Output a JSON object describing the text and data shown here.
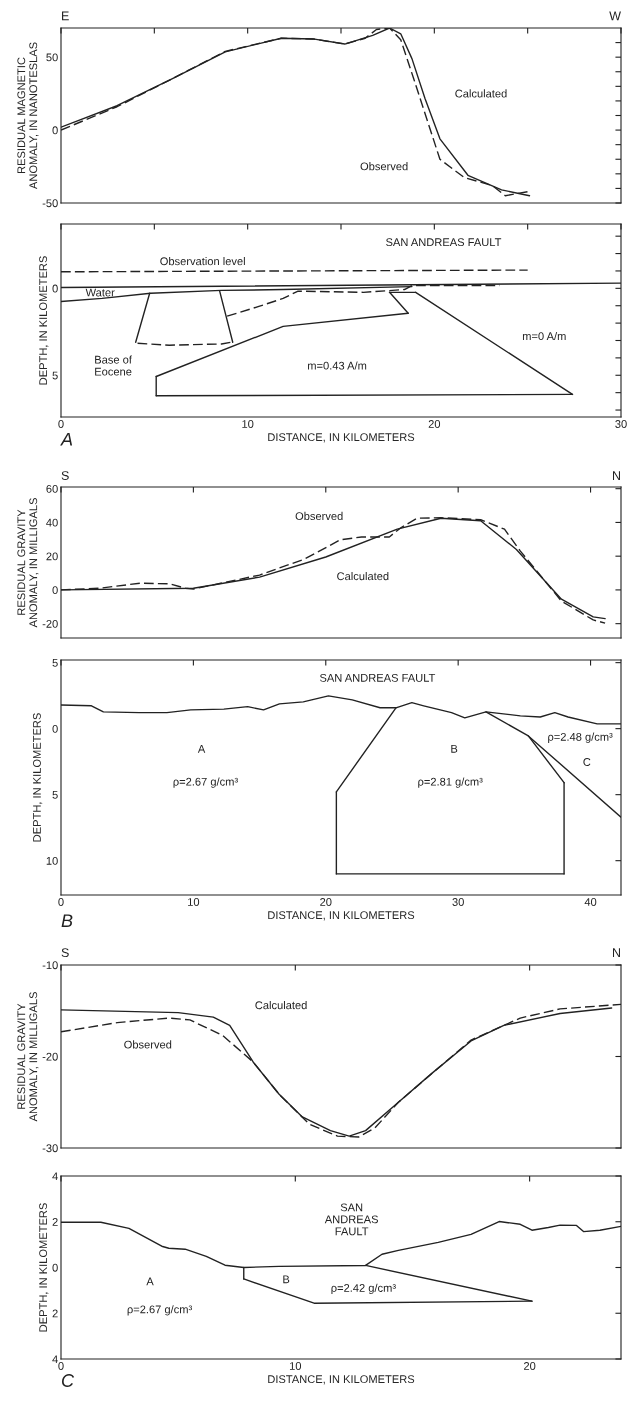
{
  "chart_data": [
    {
      "type": "line",
      "ylabel": "RESIDUAL MAGNETIC\nANOMALY, IN NANOTESLAS",
      "xlim": [
        0,
        30
      ],
      "ylim": [
        -50,
        70
      ],
      "tick_labels": "y",
      "xticks": [
        {
          "value": 0,
          "label": null
        },
        {
          "value": 5,
          "label": null
        },
        {
          "value": 10,
          "label": null
        },
        {
          "value": 15,
          "label": null
        },
        {
          "value": 20,
          "label": null
        },
        {
          "value": 25,
          "label": null
        },
        {
          "value": 30,
          "label": null
        }
      ],
      "yticks": [
        -50,
        {
          "value": -40,
          "label": null
        },
        {
          "value": -30,
          "label": null
        },
        {
          "value": -20,
          "label": null
        },
        {
          "value": -10,
          "label": null
        },
        0,
        {
          "value": 10,
          "label": null
        },
        {
          "value": 20,
          "label": null
        },
        {
          "value": 30,
          "label": null
        },
        {
          "value": 40,
          "label": null
        },
        50,
        {
          "value": 60,
          "label": null
        }
      ],
      "series": [
        {
          "color": "#222222",
          "line_style": "solid",
          "x": [
            0,
            3,
            6,
            8.8,
            11.8,
            13.5,
            15.2,
            16.7,
            17.6,
            18.2,
            18.8,
            19.5,
            20.3,
            21.8,
            23.6,
            25.1
          ],
          "values": [
            2,
            16.7,
            35.5,
            53.6,
            63,
            62.5,
            59,
            65,
            70,
            66,
            49,
            21.7,
            -6,
            -31,
            -41,
            -45
          ]
        },
        {
          "color": "#222222",
          "line_style": "dashed",
          "x": [
            0,
            3,
            6,
            8.8,
            11.8,
            13.5,
            15.2,
            16.3,
            16.9,
            17.6,
            18.2,
            18.9,
            20.3,
            21.6,
            23.1,
            23.8,
            25.1
          ],
          "values": [
            0,
            16,
            35.5,
            54,
            63,
            62.5,
            59,
            63,
            69,
            70,
            62,
            35,
            -20,
            -32.5,
            -38,
            -45,
            -42
          ]
        }
      ],
      "annotations": [
        "Calculated",
        "Observed",
        "E",
        "W"
      ]
    },
    {
      "type": "line",
      "xlabel": "DISTANCE, IN KILOMETERS",
      "ylabel": "DEPTH, IN KILOMETERS",
      "xlim": [
        0,
        30
      ],
      "ylim": [
        7.4,
        -3.7
      ],
      "xticks": [
        0,
        {
          "value": 5,
          "label": null
        },
        10,
        {
          "value": 15,
          "label": null
        },
        20,
        {
          "value": 25,
          "label": null
        },
        30
      ],
      "yticks": [
        {
          "value": -3,
          "label": null
        },
        {
          "value": -2,
          "label": null
        },
        {
          "value": -1,
          "label": null
        },
        0,
        {
          "value": 1,
          "label": null
        },
        {
          "value": 2,
          "label": null
        },
        {
          "value": 3,
          "label": null
        },
        {
          "value": 4,
          "label": null
        },
        5,
        {
          "value": 6,
          "label": null
        },
        {
          "value": 7,
          "label": null
        }
      ],
      "series": [
        {
          "color": "#222222",
          "line_style": "dashed",
          "x": [
            0,
            25
          ],
          "values": [
            -0.95,
            -1.05
          ]
        },
        {
          "color": "#222222",
          "line_style": "solid",
          "x": [
            0,
            30
          ],
          "values": [
            -0.05,
            -0.3
          ]
        },
        {
          "color": "#222222",
          "line_style": "solid",
          "x": [
            0,
            2.2,
            4.8,
            8.6,
            11.9,
            18.8
          ],
          "values": [
            0.76,
            0.58,
            0.28,
            0.12,
            0.07,
            -0.1
          ]
        },
        {
          "color": "#222222",
          "line_style": "dashed",
          "x": [
            8.9,
            10.6,
            11.9,
            12.7,
            16.2,
            18.4,
            18.8,
            23.5
          ],
          "values": [
            1.6,
            1.04,
            0.58,
            0.16,
            0.23,
            0.07,
            -0.16,
            -0.16
          ]
        },
        {
          "color": "#222222",
          "line_style": "dashed",
          "x": [
            4.1,
            5.8,
            8.6,
            9.1
          ],
          "values": [
            3.16,
            3.27,
            3.2,
            3.1
          ]
        },
        {
          "color": "#222222",
          "line_style": "solid",
          "x": [
            4.75,
            4.0
          ],
          "values": [
            0.28,
            3.1
          ]
        },
        {
          "color": "#222222",
          "line_style": "solid",
          "x": [
            8.5,
            9.2
          ],
          "values": [
            0.16,
            3.1
          ]
        },
        {
          "color": "#222222",
          "line_style": "solid",
          "x": [
            5.1,
            5.1
          ],
          "values": [
            5.07,
            6.18
          ]
        },
        {
          "color": "#222222",
          "line_style": "solid",
          "x": [
            5.1,
            27.4
          ],
          "values": [
            6.18,
            6.1
          ]
        },
        {
          "color": "#222222",
          "line_style": "solid",
          "x": [
            19.0,
            27.4
          ],
          "values": [
            0.23,
            6.1
          ]
        },
        {
          "color": "#222222",
          "line_style": "solid",
          "x": [
            17.6,
            19.0
          ],
          "values": [
            0.23,
            0.23
          ]
        },
        {
          "color": "#222222",
          "line_style": "solid",
          "x": [
            17.6,
            18.6
          ],
          "values": [
            0.23,
            1.43
          ]
        },
        {
          "color": "#222222",
          "line_style": "solid",
          "x": [
            5.1,
            11.9,
            18.6
          ],
          "values": [
            5.07,
            2.19,
            1.43
          ]
        }
      ],
      "annotations": [
        "Observation level",
        "SAN ANDREAS FAULT",
        "Water",
        "Base of\nEocene",
        "m=0.43 A/m",
        "m=0 A/m",
        "A"
      ]
    },
    {
      "type": "line",
      "ylabel": "RESIDUAL GRAVITY\nANOMALY, IN MILLIGALS",
      "xlim": [
        0,
        42.3
      ],
      "ylim": [
        -28.5,
        61
      ],
      "tick_labels": "y",
      "xticks": [
        {
          "value": 0,
          "label": null
        },
        {
          "value": 10,
          "label": null
        },
        {
          "value": 20,
          "label": null
        },
        {
          "value": 30,
          "label": null
        },
        {
          "value": 40,
          "label": null
        }
      ],
      "yticks": [
        -20,
        0,
        20,
        40,
        60
      ],
      "series": [
        {
          "color": "#222222",
          "line_style": "solid",
          "x": [
            0,
            10,
            15,
            20,
            25.4,
            28.7,
            31.7,
            34.4,
            37.8,
            40.2,
            41.1
          ],
          "values": [
            0,
            1,
            7.6,
            19.5,
            36,
            42.5,
            41,
            24,
            -5.5,
            -16,
            -17
          ]
        },
        {
          "color": "#222222",
          "line_style": "dashed",
          "x": [
            0,
            2.9,
            6,
            8.2,
            9.4,
            10,
            15,
            18.4,
            21.1,
            22.7,
            24.8,
            25.7,
            26.9,
            28.7,
            31.7,
            33.5,
            34.7,
            37.8,
            40.2,
            41.1
          ],
          "values": [
            0,
            1,
            4,
            3.6,
            1,
            0.5,
            8.8,
            18.3,
            29.7,
            31.4,
            31.4,
            37,
            42.5,
            42.8,
            41.6,
            36,
            23,
            -6.6,
            -17.8,
            -19.7
          ]
        }
      ],
      "annotations": [
        "Observed",
        "Calculated",
        "S",
        "N"
      ]
    },
    {
      "type": "line",
      "xlabel": "DISTANCE, IN KILOMETERS",
      "ylabel": "DEPTH, IN KILOMETERS",
      "xlim": [
        0,
        42.3
      ],
      "ylim": [
        12.6,
        -5.2
      ],
      "xticks": [
        0,
        10,
        20,
        30,
        40
      ],
      "yticks": [
        {
          "value": -5,
          "label": "5"
        },
        0,
        5,
        10
      ],
      "series": [
        {
          "color": "#222222",
          "line_style": "solid",
          "x": [
            0,
            2.3,
            3.2,
            5.9,
            8,
            9.8,
            12.3,
            14.1,
            15.3,
            16.5,
            18.3,
            20.2,
            22,
            24.1,
            25.3,
            26.5,
            27.4,
            29.5,
            30.5,
            32.1,
            34.7,
            36.2,
            37.3,
            38.3,
            40.5,
            42.3
          ],
          "values": [
            -1.79,
            -1.73,
            -1.27,
            -1.21,
            -1.21,
            -1.42,
            -1.48,
            -1.67,
            -1.42,
            -1.88,
            -2.03,
            -2.48,
            -2.18,
            -1.58,
            -1.58,
            -1.97,
            -1.73,
            -1.21,
            -0.82,
            -1.27,
            -0.97,
            -0.88,
            -1.21,
            -0.88,
            -0.36,
            -0.36
          ]
        },
        {
          "color": "#222222",
          "line_style": "solid",
          "x": [
            20.8,
            25.3
          ],
          "values": [
            4.79,
            -1.58
          ]
        },
        {
          "color": "#222222",
          "line_style": "solid",
          "x": [
            20.8,
            20.8
          ],
          "values": [
            4.79,
            11.0
          ]
        },
        {
          "color": "#222222",
          "line_style": "solid",
          "x": [
            20.8,
            38.0
          ],
          "values": [
            11.0,
            11.0
          ]
        },
        {
          "color": "#222222",
          "line_style": "solid",
          "x": [
            38.0,
            38.0
          ],
          "values": [
            11.0,
            4.09
          ]
        },
        {
          "color": "#222222",
          "line_style": "solid",
          "x": [
            35.3,
            38.0
          ],
          "values": [
            0.55,
            4.09
          ]
        },
        {
          "color": "#222222",
          "line_style": "solid",
          "x": [
            32.1,
            35.3,
            42.3
          ],
          "values": [
            -1.27,
            0.55,
            6.7
          ]
        }
      ],
      "annotations": [
        "SAN ANDREAS FAULT",
        "A",
        "ρ=2.67 g/cm³",
        "B",
        "ρ=2.81 g/cm³",
        "ρ=2.48 g/cm³",
        "C",
        "B"
      ]
    },
    {
      "type": "line",
      "ylabel": "RESIDUAL GRAVITY\nANOMALY, IN MILLIGALS",
      "xlim": [
        0,
        23.9
      ],
      "ylim": [
        -30,
        -10
      ],
      "tick_labels": "y",
      "xticks": [
        {
          "value": 0,
          "label": null
        },
        {
          "value": 10,
          "label": null
        },
        {
          "value": 20,
          "label": null
        }
      ],
      "yticks": [
        -30,
        -20,
        -10
      ],
      "series": [
        {
          "color": "#222222",
          "line_style": "solid",
          "x": [
            0,
            5,
            6.5,
            7.2,
            8.2,
            9.3,
            10.3,
            11.5,
            12.3,
            13,
            14.4,
            15.8,
            17.5,
            18.9,
            21.3,
            23.5
          ],
          "values": [
            -14.9,
            -15.2,
            -15.7,
            -16.6,
            -20.6,
            -24.1,
            -26.6,
            -28.1,
            -28.7,
            -28.1,
            -25,
            -21.9,
            -18.3,
            -16.6,
            -15.3,
            -14.7
          ]
        },
        {
          "color": "#222222",
          "line_style": "dashed",
          "x": [
            0,
            2.4,
            4.6,
            5.5,
            6.9,
            8.2,
            9.3,
            10.6,
            11.8,
            12.7,
            13.4,
            14.4,
            17.5,
            19.6,
            21.3,
            23.9
          ],
          "values": [
            -17.3,
            -16.3,
            -15.8,
            -16,
            -17.7,
            -20.6,
            -24.1,
            -27.4,
            -28.7,
            -28.8,
            -27.8,
            -25,
            -18.2,
            -15.8,
            -14.8,
            -14.3
          ]
        }
      ],
      "annotations": [
        "Calculated",
        "Observed",
        "S",
        "N"
      ]
    },
    {
      "type": "line",
      "xlabel": "DISTANCE, IN KILOMETERS",
      "ylabel": "DEPTH, IN KILOMETERS",
      "xlim": [
        0,
        23.9
      ],
      "ylim": [
        4,
        -4
      ],
      "xticks": [
        0,
        10,
        20
      ],
      "yticks": [
        {
          "value": -4,
          "label": "4"
        },
        {
          "value": -2,
          "label": "2"
        },
        0,
        2,
        4
      ],
      "series": [
        {
          "color": "#222222",
          "line_style": "solid",
          "x": [
            0,
            1.7,
            2.9,
            4.3,
            4.6,
            5.3,
            6.2,
            7,
            7.8,
            9.3,
            13,
            13.7,
            14.4,
            16.1,
            17.5,
            18.7,
            19.6,
            20.1,
            20.8,
            21.3,
            22,
            22.3,
            23,
            23.9
          ],
          "values": [
            -1.98,
            -1.98,
            -1.71,
            -0.93,
            -0.84,
            -0.8,
            -0.49,
            -0.1,
            0,
            -0.05,
            -0.09,
            -0.58,
            -0.75,
            -1.1,
            -1.45,
            -2.01,
            -1.89,
            -1.63,
            -1.75,
            -1.85,
            -1.84,
            -1.57,
            -1.63,
            -1.8
          ]
        },
        {
          "color": "#222222",
          "line_style": "solid",
          "x": [
            7.8,
            7.8
          ],
          "values": [
            0,
            0.5
          ]
        },
        {
          "color": "#222222",
          "line_style": "solid",
          "x": [
            7.8,
            10.8,
            20.1
          ],
          "values": [
            0.5,
            1.56,
            1.47
          ]
        },
        {
          "color": "#222222",
          "line_style": "solid",
          "x": [
            13.0,
            20.1
          ],
          "values": [
            -0.09,
            1.47
          ]
        }
      ],
      "annotations": [
        "SAN\nANDREAS\nFAULT",
        "A",
        "ρ=2.67 g/cm³",
        "B",
        "ρ=2.42 g/cm³",
        "C"
      ]
    }
  ]
}
